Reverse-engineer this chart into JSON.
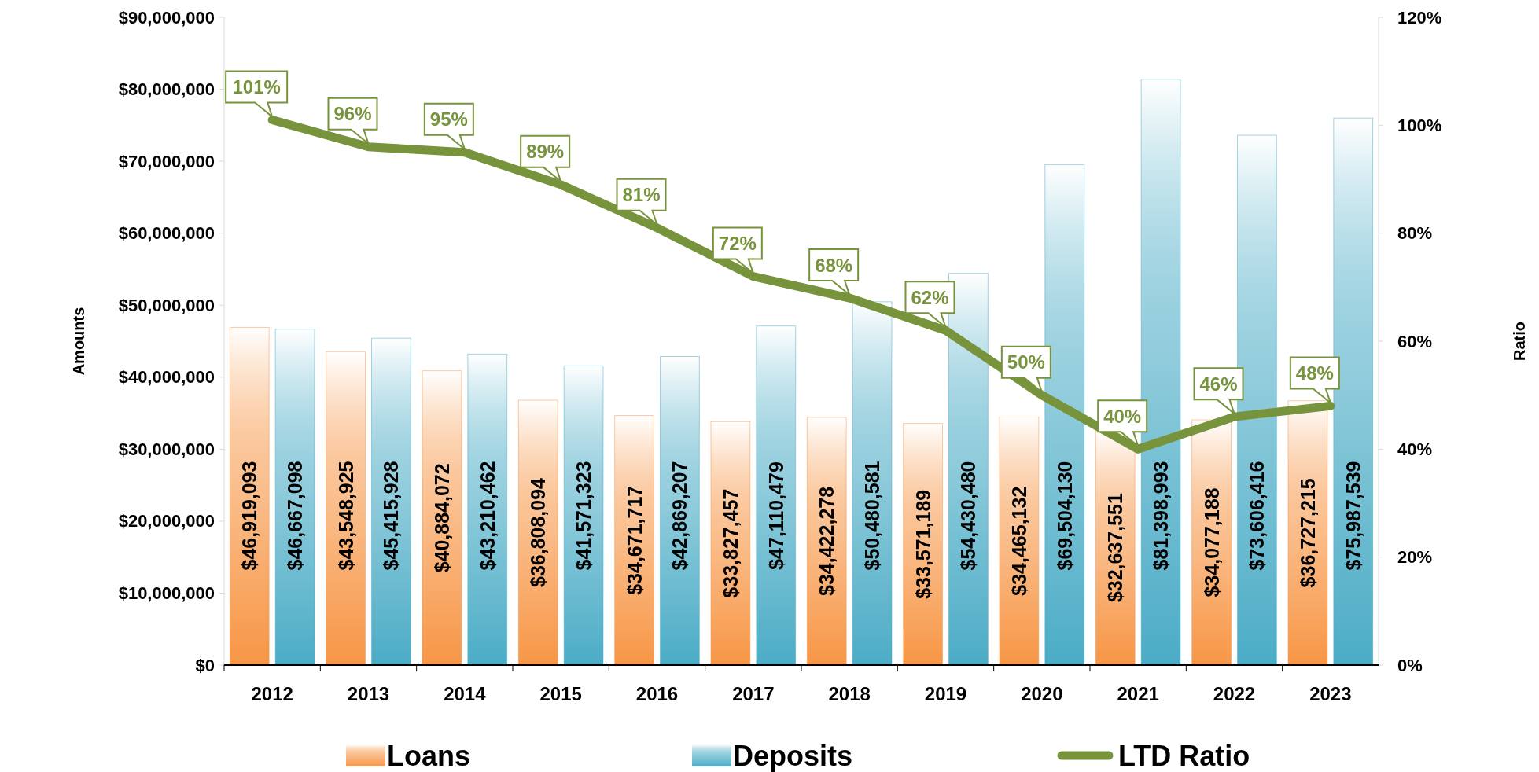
{
  "chart_data": {
    "type": "bar",
    "xlabel": null,
    "ylabel": "Amounts",
    "y2label": "Ratio",
    "categories": [
      "2012",
      "2013",
      "2014",
      "2015",
      "2016",
      "2017",
      "2018",
      "2019",
      "2020",
      "2021",
      "2022",
      "2023"
    ],
    "series": [
      {
        "name": "Loans",
        "color": "#f79646",
        "values": [
          46919093,
          43548925,
          40884072,
          36808094,
          34671717,
          33827457,
          34422278,
          33571189,
          34465132,
          32637551,
          34077188,
          36727215
        ],
        "value_labels": [
          "$46,919,093",
          "$43,548,925",
          "$40,884,072",
          "$36,808,094",
          "$34,671,717",
          "$33,827,457",
          "$34,422,278",
          "$33,571,189",
          "$34,465,132",
          "$32,637,551",
          "$34,077,188",
          "$36,727,215"
        ]
      },
      {
        "name": "Deposits",
        "color": "#4bacc6",
        "values": [
          46667098,
          45415928,
          43210462,
          41571323,
          42869207,
          47110479,
          50480581,
          54430480,
          69504130,
          81398993,
          73606416,
          75987539
        ],
        "value_labels": [
          "$46,667,098",
          "$45,415,928",
          "$43,210,462",
          "$41,571,323",
          "$42,869,207",
          "$47,110,479",
          "$50,480,581",
          "$54,430,480",
          "$69,504,130",
          "$81,398,993",
          "$73,606,416",
          "$75,987,539"
        ]
      },
      {
        "name": "LTD Ratio",
        "type": "line",
        "axis": "y2",
        "color": "#77933c",
        "values": [
          101,
          96,
          95,
          89,
          81,
          72,
          68,
          62,
          50,
          40,
          46,
          48
        ],
        "value_labels": [
          "101%",
          "96%",
          "95%",
          "89%",
          "81%",
          "72%",
          "68%",
          "62%",
          "50%",
          "40%",
          "46%",
          "48%"
        ]
      }
    ],
    "ylim": [
      0,
      90000000
    ],
    "yticks": [
      {
        "value": 0,
        "label": "$0"
      },
      {
        "value": 10000000,
        "label": "$10,000,000"
      },
      {
        "value": 20000000,
        "label": "$20,000,000"
      },
      {
        "value": 30000000,
        "label": "$30,000,000"
      },
      {
        "value": 40000000,
        "label": "$40,000,000"
      },
      {
        "value": 50000000,
        "label": "$50,000,000"
      },
      {
        "value": 60000000,
        "label": "$60,000,000"
      },
      {
        "value": 70000000,
        "label": "$70,000,000"
      },
      {
        "value": 80000000,
        "label": "$80,000,000"
      },
      {
        "value": 90000000,
        "label": "$90,000,000"
      }
    ],
    "y2lim": [
      0,
      120
    ],
    "y2ticks": [
      {
        "value": 0,
        "label": "0%"
      },
      {
        "value": 20,
        "label": "20%"
      },
      {
        "value": 40,
        "label": "40%"
      },
      {
        "value": 60,
        "label": "60%"
      },
      {
        "value": 80,
        "label": "80%"
      },
      {
        "value": 100,
        "label": "100%"
      },
      {
        "value": 120,
        "label": "120%"
      }
    ],
    "grid": false,
    "legend": "bottom",
    "line_style": "solid",
    "marker": "none"
  }
}
